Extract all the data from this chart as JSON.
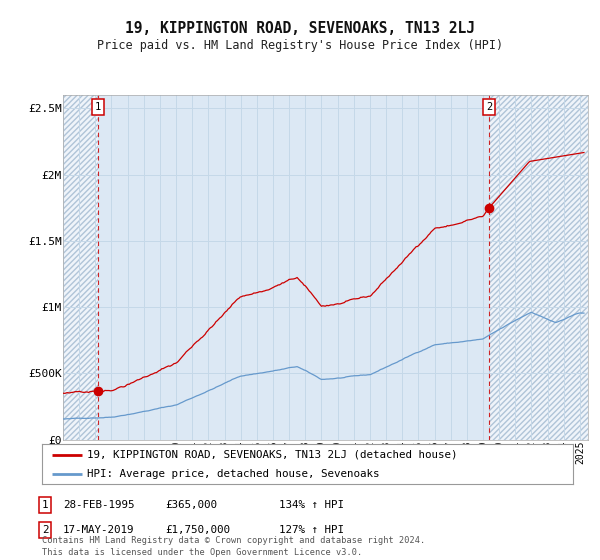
{
  "title": "19, KIPPINGTON ROAD, SEVENOAKS, TN13 2LJ",
  "subtitle": "Price paid vs. HM Land Registry's House Price Index (HPI)",
  "ylim": [
    0,
    2600000
  ],
  "xlim_start": 1993.0,
  "xlim_end": 2025.5,
  "sale1_date": 1995.16,
  "sale1_price": 365000,
  "sale2_date": 2019.38,
  "sale2_price": 1750000,
  "legend_line1": "19, KIPPINGTON ROAD, SEVENOAKS, TN13 2LJ (detached house)",
  "legend_line2": "HPI: Average price, detached house, Sevenoaks",
  "table_row1": [
    "1",
    "28-FEB-1995",
    "£365,000",
    "134% ↑ HPI"
  ],
  "table_row2": [
    "2",
    "17-MAY-2019",
    "£1,750,000",
    "127% ↑ HPI"
  ],
  "footer": "Contains HM Land Registry data © Crown copyright and database right 2024.\nThis data is licensed under the Open Government Licence v3.0.",
  "hpi_color": "#6699cc",
  "price_color": "#cc0000",
  "grid_color": "#c5d8e8",
  "plot_bg": "#dce8f4",
  "hatch_color": "#b0c4d8",
  "yticks": [
    0,
    500000,
    1000000,
    1500000,
    2000000,
    2500000
  ],
  "ytick_labels": [
    "£0",
    "£500K",
    "£1M",
    "£1.5M",
    "£2M",
    "£2.5M"
  ],
  "fig_bg": "#ffffff"
}
